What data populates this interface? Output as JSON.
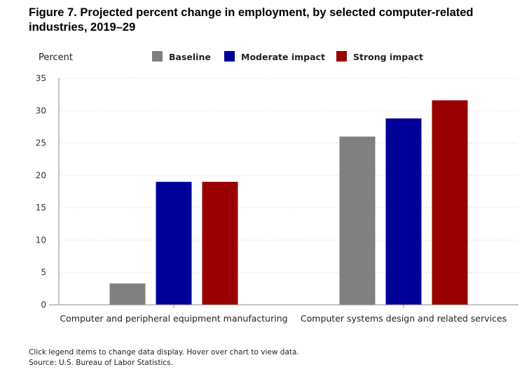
{
  "title": "Figure 7. Projected percent change in employment, by selected computer-related industries, 2019–29",
  "footer": {
    "note": "Click legend items to change data display. Hover over chart to view data.",
    "source": "Source: U.S. Bureau of Labor Statistics."
  },
  "chart_data": {
    "type": "bar",
    "title": "Figure 7. Projected percent change in employment, by selected computer-related industries, 2019–29",
    "ylabel": "Percent",
    "xlabel": "",
    "ylim": [
      0,
      35
    ],
    "yticks": [
      0,
      5,
      10,
      15,
      20,
      25,
      30,
      35
    ],
    "grid": true,
    "legend_position": "top",
    "categories": [
      "Computer and peripheral equipment manufacturing",
      "Computer systems design and related services"
    ],
    "series": [
      {
        "name": "Baseline",
        "color": "#808080",
        "values": [
          3.3,
          26.0
        ]
      },
      {
        "name": "Moderate impact",
        "color": "#000099",
        "values": [
          19.0,
          28.8
        ]
      },
      {
        "name": "Strong impact",
        "color": "#990000",
        "values": [
          19.0,
          31.6
        ]
      }
    ]
  }
}
